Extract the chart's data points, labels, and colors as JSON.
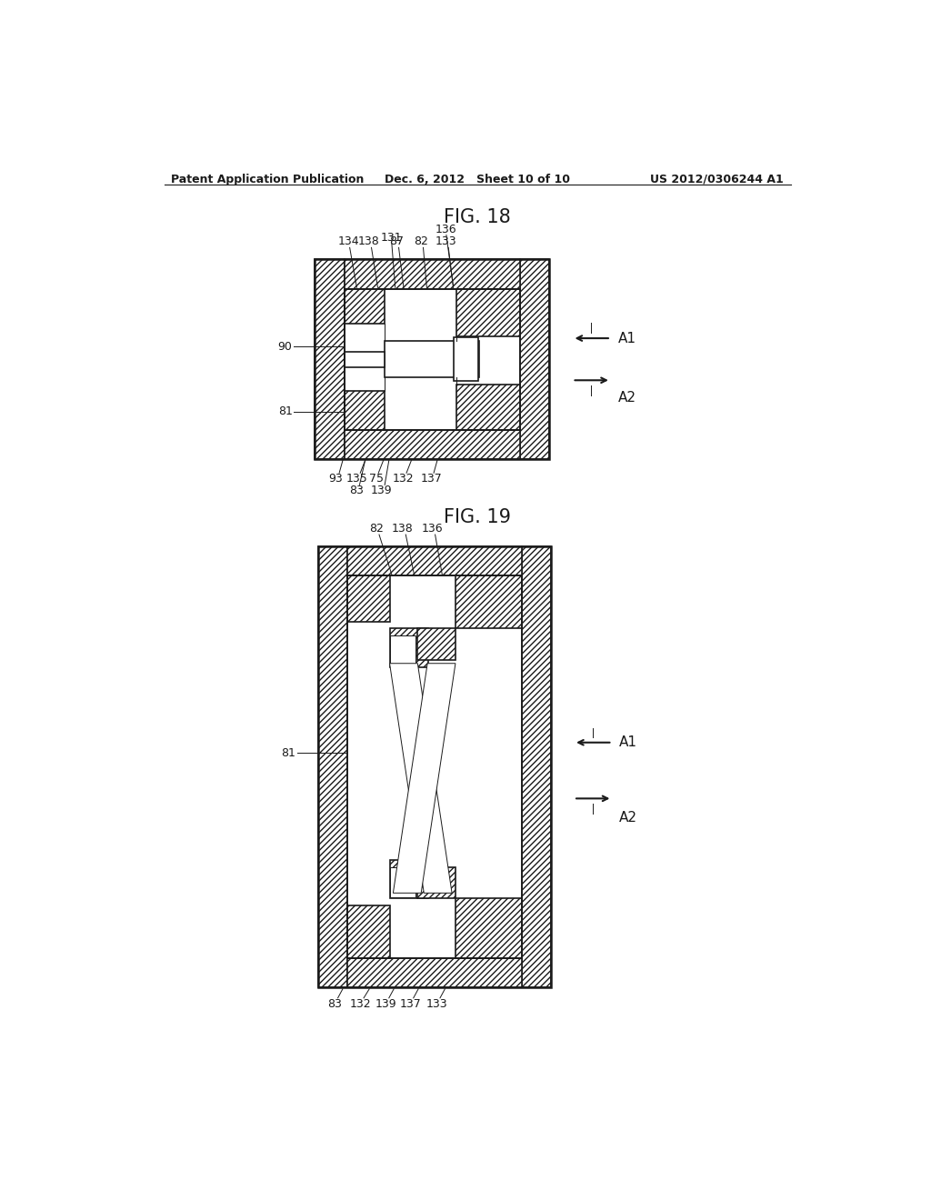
{
  "bg_color": "#ffffff",
  "line_color": "#1a1a1a",
  "header_left": "Patent Application Publication",
  "header_center": "Dec. 6, 2012   Sheet 10 of 10",
  "header_right": "US 2012/0306244 A1",
  "fig18_title": "FIG. 18",
  "fig19_title": "FIG. 19",
  "figsize": [
    10.24,
    13.2
  ],
  "dpi": 100
}
